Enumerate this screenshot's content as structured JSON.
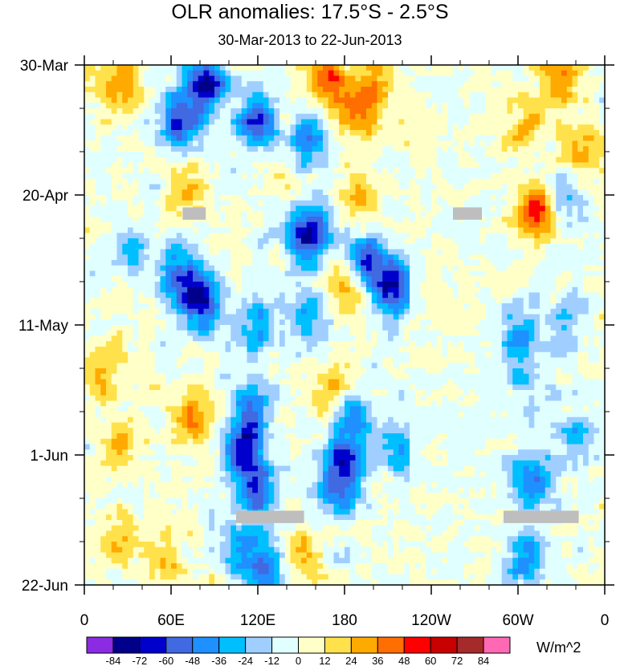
{
  "chart_data": {
    "type": "heatmap",
    "title": "OLR anomalies: 17.5°S - 2.5°S",
    "subtitle": "30-Mar-2013 to 22-Jun-2013",
    "xlabel": "",
    "ylabel": "",
    "units": "W/m^2",
    "x_ticks": [
      {
        "lon": 0,
        "label": "0"
      },
      {
        "lon": 60,
        "label": "60E"
      },
      {
        "lon": 120,
        "label": "120E"
      },
      {
        "lon": 180,
        "label": "180"
      },
      {
        "lon": 240,
        "label": "120W"
      },
      {
        "lon": 300,
        "label": "60W"
      },
      {
        "lon": 360,
        "label": "0"
      }
    ],
    "y_ticks": [
      {
        "day": 0,
        "label": "30-Mar"
      },
      {
        "day": 21,
        "label": "20-Apr"
      },
      {
        "day": 42,
        "label": "11-May"
      },
      {
        "day": 63,
        "label": "1-Jun"
      },
      {
        "day": 84,
        "label": "22-Jun"
      }
    ],
    "xlim": [
      0,
      360
    ],
    "ylim_days": [
      0,
      84
    ],
    "colorbar": {
      "labels": [
        "-84",
        "-72",
        "-60",
        "-48",
        "-36",
        "-24",
        "-12",
        "0",
        "12",
        "24",
        "36",
        "48",
        "60",
        "72",
        "84"
      ],
      "colors": [
        "#8b2be2",
        "#00008b",
        "#0000cd",
        "#4169e1",
        "#1e90ff",
        "#00bfff",
        "#a0cfff",
        "#e0ffff",
        "#ffffc8",
        "#ffe14b",
        "#ffaa00",
        "#ff6e00",
        "#ff0000",
        "#c80000",
        "#a52a2a",
        "#ff69b4"
      ]
    },
    "missing_color": "#bebebe",
    "missing_regions": [
      {
        "lon_start": 68,
        "lon_end": 84,
        "day_start": 23,
        "day_end": 25
      },
      {
        "lon_start": 255,
        "lon_end": 275,
        "day_start": 23,
        "day_end": 25
      },
      {
        "lon_start": 105,
        "lon_end": 152,
        "day_start": 72,
        "day_end": 74
      },
      {
        "lon_start": 290,
        "lon_end": 342,
        "day_start": 72,
        "day_end": 74
      }
    ],
    "anomaly_features": [
      {
        "description": "",
        "lon": 67,
        "day": 9,
        "value": -60
      },
      {
        "lon": 85,
        "day": 3,
        "value": -72
      },
      {
        "lon": 120,
        "day": 9,
        "value": -60
      },
      {
        "lon": 155,
        "day": 12,
        "value": -48
      },
      {
        "lon": 168,
        "day": 2,
        "value": 48
      },
      {
        "lon": 188,
        "day": 8,
        "value": 36
      },
      {
        "lon": 200,
        "day": 3,
        "value": 24
      },
      {
        "lon": 25,
        "day": 3,
        "value": 36
      },
      {
        "lon": 328,
        "day": 2,
        "value": 36
      },
      {
        "lon": 305,
        "day": 10,
        "value": 24
      },
      {
        "lon": 315,
        "day": 24,
        "value": 60
      },
      {
        "lon": 330,
        "day": 22,
        "value": -36
      },
      {
        "lon": 80,
        "day": 38,
        "value": -72
      },
      {
        "lon": 65,
        "day": 34,
        "value": -48
      },
      {
        "lon": 155,
        "day": 27,
        "value": -72
      },
      {
        "lon": 195,
        "day": 32,
        "value": -60
      },
      {
        "lon": 215,
        "day": 36,
        "value": -72
      },
      {
        "lon": 155,
        "day": 40,
        "value": -36
      },
      {
        "lon": 120,
        "day": 42,
        "value": -36
      },
      {
        "lon": 115,
        "day": 56,
        "value": -48
      },
      {
        "lon": 110,
        "day": 63,
        "value": -60
      },
      {
        "lon": 120,
        "day": 69,
        "value": -48
      },
      {
        "lon": 110,
        "day": 78,
        "value": -36
      },
      {
        "lon": 125,
        "day": 82,
        "value": -48
      },
      {
        "lon": 175,
        "day": 53,
        "value": 36
      },
      {
        "lon": 185,
        "day": 56,
        "value": -48
      },
      {
        "lon": 180,
        "day": 64,
        "value": -60
      },
      {
        "lon": 175,
        "day": 69,
        "value": -36
      },
      {
        "lon": 218,
        "day": 62,
        "value": -36
      },
      {
        "lon": 75,
        "day": 57,
        "value": 36
      },
      {
        "lon": 25,
        "day": 62,
        "value": 24
      },
      {
        "lon": 25,
        "day": 76,
        "value": 24
      },
      {
        "lon": 180,
        "day": 36,
        "value": 36
      },
      {
        "lon": 70,
        "day": 20,
        "value": 24
      },
      {
        "lon": 15,
        "day": 50,
        "value": 24
      },
      {
        "lon": 300,
        "day": 44,
        "value": -36
      },
      {
        "lon": 310,
        "day": 52,
        "value": -24
      },
      {
        "lon": 310,
        "day": 67,
        "value": -48
      },
      {
        "lon": 305,
        "day": 80,
        "value": -48
      },
      {
        "lon": 335,
        "day": 41,
        "value": -24
      },
      {
        "lon": 340,
        "day": 60,
        "value": -24
      },
      {
        "lon": 345,
        "day": 13,
        "value": 24
      },
      {
        "lon": 240,
        "day": 38,
        "value": 12
      },
      {
        "lon": 260,
        "day": 60,
        "value": -12
      },
      {
        "lon": 140,
        "day": 18,
        "value": 12
      },
      {
        "lon": 35,
        "day": 30,
        "value": -24
      },
      {
        "lon": 190,
        "day": 22,
        "value": 24
      },
      {
        "lon": 230,
        "day": 10,
        "value": 12
      },
      {
        "lon": 55,
        "day": 80,
        "value": 24
      },
      {
        "lon": 150,
        "day": 79,
        "value": 24
      }
    ]
  }
}
